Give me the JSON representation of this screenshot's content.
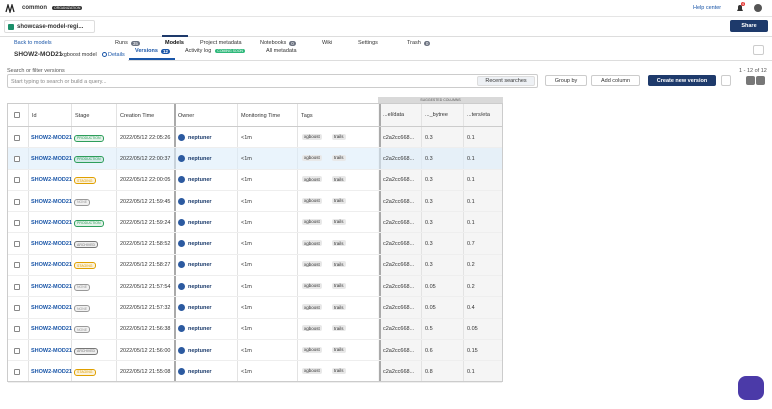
{
  "topbar": {
    "org": "common",
    "badge": "ORGANIZATION",
    "help": "Help center",
    "notifications": 4
  },
  "nav": {
    "project": "showcase-model-regi...",
    "tabs": [
      {
        "label": "Runs",
        "count": 35
      },
      {
        "label": "Models"
      },
      {
        "label": "Project metadata"
      },
      {
        "label": "Notebooks",
        "count": 0
      },
      {
        "label": "Wiki"
      },
      {
        "label": "Settings"
      },
      {
        "label": "Trash",
        "count": 0
      }
    ],
    "share": "Share"
  },
  "model": {
    "back": "Back to models",
    "id": "SHOW2-MOD21",
    "name": "xgboost model",
    "details": "Details"
  },
  "subtabs": [
    {
      "label": "Versions",
      "count": 12
    },
    {
      "label": "Activity log",
      "badge": "COMING SOON"
    },
    {
      "label": "All metadata"
    }
  ],
  "toolbar": {
    "search_label": "Search or filter versions",
    "placeholder": "Start typing to search or build a query...",
    "recent": "Recent searches",
    "group": "Group by",
    "add": "Add column",
    "create": "Create new version",
    "pager": "1 - 12 of 12"
  },
  "table": {
    "suggested": "SUGGESTED COLUMNS",
    "columns": [
      "Id",
      "Stage",
      "Creation Time",
      "Owner",
      "Monitoring Time",
      "Tags",
      "...el/data",
      "..._bytree",
      "...ters/eta"
    ],
    "stage_colors": [
      "#2e9e5b",
      "#2e9e5b",
      "#e0a000",
      "#999999",
      "#2e9e5b",
      "#777777",
      "#e0a000",
      "#999999",
      "#999999",
      "#999999",
      "#777777",
      "#e0a000"
    ],
    "rows": [
      [
        "SHOW2-MOD21",
        "PRODUCTION",
        "2022/05/12 22:05:26",
        "neptuner",
        "<1m",
        [
          "xgboost",
          "trails"
        ],
        "c2a2cc668...",
        0.3,
        0.1
      ],
      [
        "SHOW2-MOD21",
        "PRODUCTION",
        "2022/05/12 22:00:37",
        "neptuner",
        "<1m",
        [
          "xgboost",
          "trails"
        ],
        "c2a2cc668...",
        0.3,
        0.1
      ],
      [
        "SHOW2-MOD21",
        "STAGING",
        "2022/05/12 22:00:05",
        "neptuner",
        "<1m",
        [
          "xgboost",
          "trails"
        ],
        "c2a2cc668...",
        0.3,
        0.1
      ],
      [
        "SHOW2-MOD21",
        "NONE",
        "2022/05/12 21:59:45",
        "neptuner",
        "<1m",
        [
          "xgboost",
          "trails"
        ],
        "c2a2cc668...",
        0.3,
        0.1
      ],
      [
        "SHOW2-MOD21",
        "PRODUCTION",
        "2022/05/12 21:59:24",
        "neptuner",
        "<1m",
        [
          "xgboost",
          "trails"
        ],
        "c2a2cc668...",
        0.3,
        0.1
      ],
      [
        "SHOW2-MOD21",
        "ARCHIVED",
        "2022/05/12 21:58:52",
        "neptuner",
        "<1m",
        [
          "xgboost",
          "trails"
        ],
        "c2a2cc668...",
        0.3,
        0.7
      ],
      [
        "SHOW2-MOD21",
        "STAGING",
        "2022/05/12 21:58:27",
        "neptuner",
        "<1m",
        [
          "xgboost",
          "trails"
        ],
        "c2a2cc668...",
        0.3,
        0.2
      ],
      [
        "SHOW2-MOD21",
        "NONE",
        "2022/05/12 21:57:54",
        "neptuner",
        "<1m",
        [
          "xgboost",
          "trails"
        ],
        "c2a2cc668...",
        0.05,
        0.2
      ],
      [
        "SHOW2-MOD21",
        "NONE",
        "2022/05/12 21:57:32",
        "neptuner",
        "<1m",
        [
          "xgboost",
          "trails"
        ],
        "c2a2cc668...",
        0.05,
        0.4
      ],
      [
        "SHOW2-MOD21",
        "NONE",
        "2022/05/12 21:56:38",
        "neptuner",
        "<1m",
        [
          "xgboost",
          "trails"
        ],
        "c2a2cc668...",
        0.5,
        0.05
      ],
      [
        "SHOW2-MOD21",
        "ARCHIVED",
        "2022/05/12 21:56:00",
        "neptuner",
        "<1m",
        [
          "xgboost",
          "trails"
        ],
        "c2a2cc668...",
        0.6,
        0.15
      ],
      [
        "SHOW2-MOD21",
        "STAGING",
        "2022/05/12 21:55:08",
        "neptuner",
        "<1m",
        [
          "xgboost",
          "trails"
        ],
        "c2a2cc668...",
        0.8,
        0.1
      ]
    ]
  }
}
